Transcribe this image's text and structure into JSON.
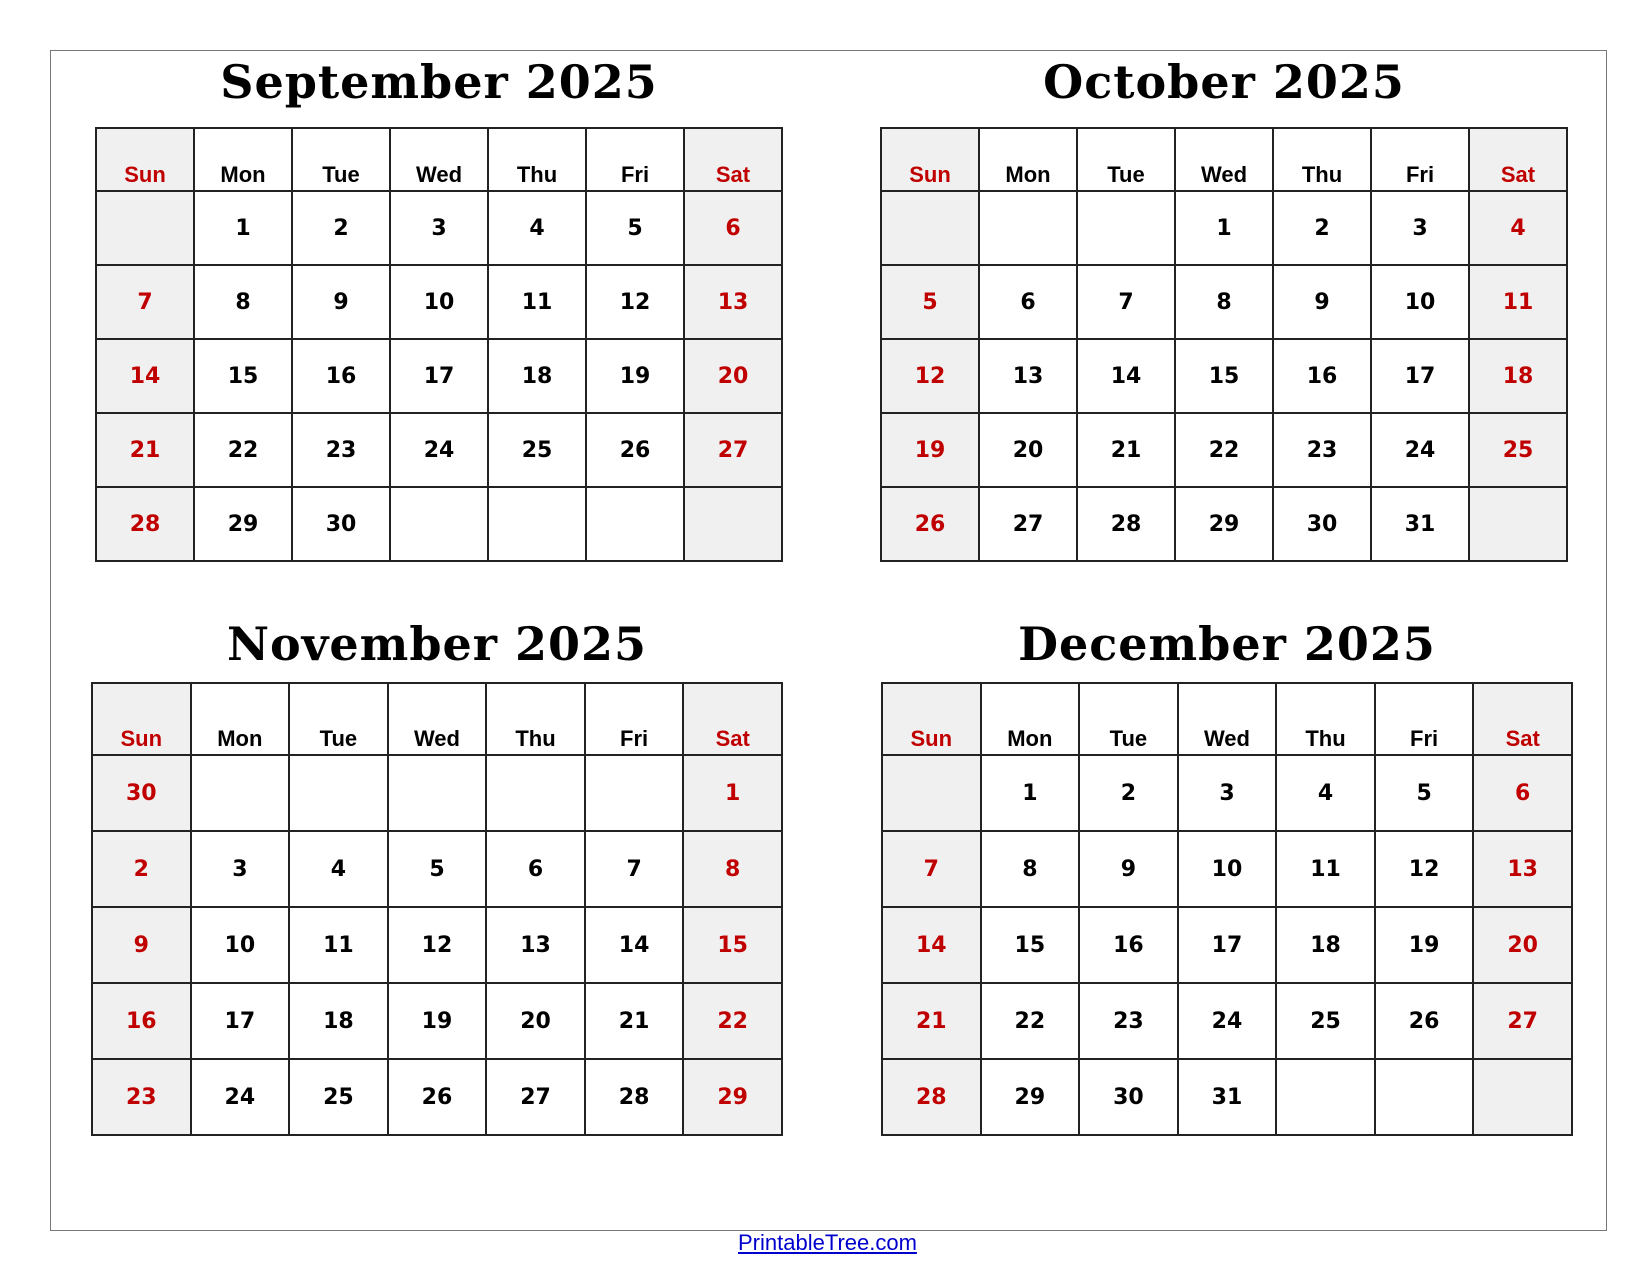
{
  "colors": {
    "weekend_text": "#c00000",
    "weekend_bg": "#f0f0f0",
    "link": "#0000cc"
  },
  "weekdays": [
    "Sun",
    "Mon",
    "Tue",
    "Wed",
    "Thu",
    "Fri",
    "Sat"
  ],
  "months": [
    {
      "title": "September 2025",
      "weeks": [
        [
          "",
          "1",
          "2",
          "3",
          "4",
          "5",
          "6"
        ],
        [
          "7",
          "8",
          "9",
          "10",
          "11",
          "12",
          "13"
        ],
        [
          "14",
          "15",
          "16",
          "17",
          "18",
          "19",
          "20"
        ],
        [
          "21",
          "22",
          "23",
          "24",
          "25",
          "26",
          "27"
        ],
        [
          "28",
          "29",
          "30",
          "",
          "",
          "",
          ""
        ]
      ]
    },
    {
      "title": "October 2025",
      "weeks": [
        [
          "",
          "",
          "",
          "1",
          "2",
          "3",
          "4"
        ],
        [
          "5",
          "6",
          "7",
          "8",
          "9",
          "10",
          "11"
        ],
        [
          "12",
          "13",
          "14",
          "15",
          "16",
          "17",
          "18"
        ],
        [
          "19",
          "20",
          "21",
          "22",
          "23",
          "24",
          "25"
        ],
        [
          "26",
          "27",
          "28",
          "29",
          "30",
          "31",
          ""
        ]
      ]
    },
    {
      "title": "November 2025",
      "weeks": [
        [
          "30",
          "",
          "",
          "",
          "",
          "",
          "1"
        ],
        [
          "2",
          "3",
          "4",
          "5",
          "6",
          "7",
          "8"
        ],
        [
          "9",
          "10",
          "11",
          "12",
          "13",
          "14",
          "15"
        ],
        [
          "16",
          "17",
          "18",
          "19",
          "20",
          "21",
          "22"
        ],
        [
          "23",
          "24",
          "25",
          "26",
          "27",
          "28",
          "29"
        ]
      ]
    },
    {
      "title": "December 2025",
      "weeks": [
        [
          "",
          "1",
          "2",
          "3",
          "4",
          "5",
          "6"
        ],
        [
          "7",
          "8",
          "9",
          "10",
          "11",
          "12",
          "13"
        ],
        [
          "14",
          "15",
          "16",
          "17",
          "18",
          "19",
          "20"
        ],
        [
          "21",
          "22",
          "23",
          "24",
          "25",
          "26",
          "27"
        ],
        [
          "28",
          "29",
          "30",
          "31",
          "",
          "",
          ""
        ]
      ]
    }
  ],
  "footer": {
    "link": "PrintableTree.com"
  }
}
